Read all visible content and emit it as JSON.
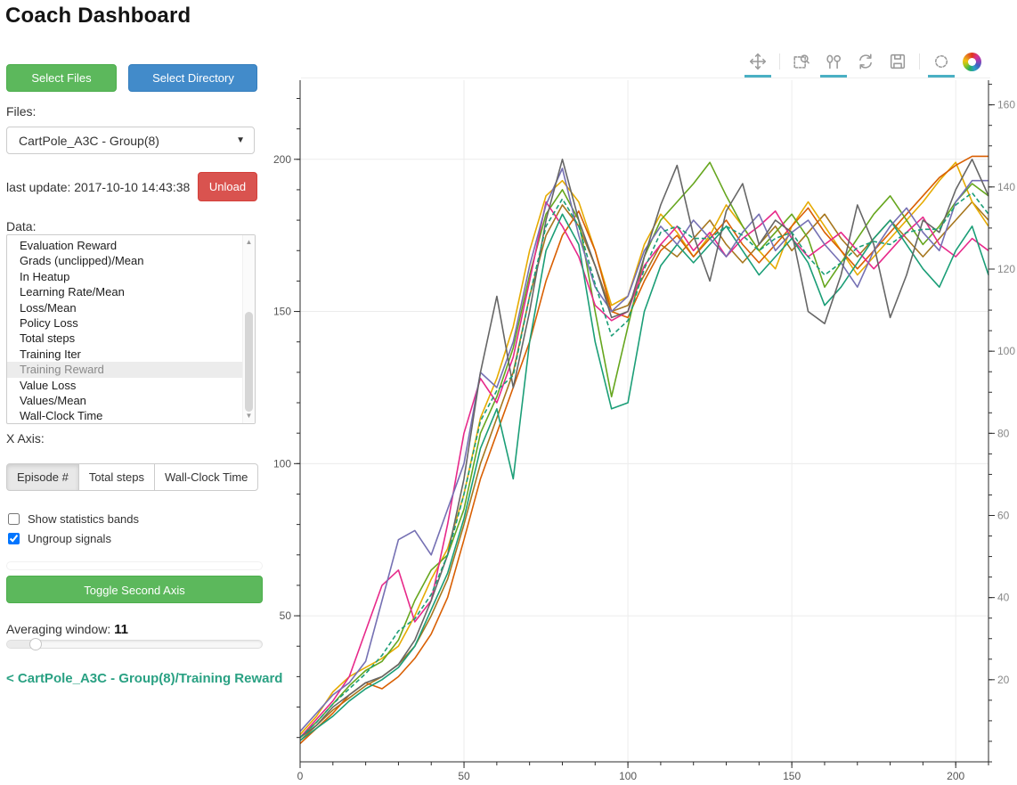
{
  "header": {
    "title": "Coach Dashboard"
  },
  "sidebar": {
    "select_files_label": "Select Files",
    "select_directory_label": "Select Directory",
    "files_label": "Files:",
    "files_selected": "CartPole_A3C - Group(8)",
    "caret_glyph": "▼",
    "last_update": "last update: 2017-10-10 14:43:38",
    "unload_label": "Unload",
    "data_label": "Data:",
    "data_items": [
      "Evaluation Reward",
      "Grads (unclipped)/Mean",
      "In Heatup",
      "Learning Rate/Mean",
      "Loss/Mean",
      "Policy Loss",
      "Total steps",
      "Training Iter",
      "Training Reward",
      "Value Loss",
      "Values/Mean",
      "Wall-Clock Time"
    ],
    "data_selected": "Training Reward",
    "scroll_up_glyph": "▲",
    "scroll_down_glyph": "▼",
    "x_axis_label": "X Axis:",
    "x_axis_options": [
      "Episode #",
      "Total steps",
      "Wall-Clock Time"
    ],
    "x_axis_selected": "Episode #",
    "checkbox_bands": {
      "label": "Show statistics bands",
      "checked": false
    },
    "checkbox_ungroup": {
      "label": "Ungroup signals",
      "checked": true
    },
    "toggle_second_axis_label": "Toggle Second Axis",
    "averaging_window_label": "Averaging window:",
    "averaging_window_value": "11",
    "breadcrumb_link": "< CartPole_A3C - Group(8)/Training Reward"
  },
  "toolbar": {
    "tools": [
      {
        "name": "pan",
        "active": true
      },
      {
        "name": "box-zoom",
        "active": false
      },
      {
        "name": "hover",
        "active": true
      },
      {
        "name": "reset",
        "active": false
      },
      {
        "name": "save",
        "active": false
      },
      {
        "name": "crosshair",
        "active": true
      }
    ],
    "underline_color": "#4ab0c4"
  },
  "colors": {
    "green_button": "#5cb85c",
    "blue_button": "#428bca",
    "red_button": "#d9534f",
    "link_teal": "#2aa183",
    "grid": "#ececec",
    "axis": "#2b2b2b"
  },
  "chart_data": {
    "type": "line",
    "title": "",
    "xlabel": "",
    "ylabel": "",
    "legend": "none",
    "grid": true,
    "axes": {
      "x": {
        "min": 0,
        "max": 210,
        "major": [
          0,
          50,
          100,
          150,
          200
        ],
        "minor_step": 10
      },
      "y_left": {
        "min": 2,
        "max": 226,
        "major": [
          50,
          100,
          150,
          200
        ],
        "minor_step": 10
      },
      "y_right": {
        "min": 0,
        "max": 166,
        "major": [
          20,
          40,
          60,
          80,
          100,
          120,
          140,
          160
        ],
        "minor_step": 5
      }
    },
    "x": [
      0,
      5,
      10,
      15,
      20,
      25,
      30,
      35,
      40,
      45,
      50,
      55,
      60,
      65,
      70,
      75,
      80,
      85,
      90,
      95,
      100,
      105,
      110,
      115,
      120,
      125,
      130,
      135,
      140,
      145,
      150,
      155,
      160,
      165,
      170,
      175,
      180,
      185,
      190,
      195,
      200,
      205,
      210
    ],
    "series": [
      {
        "name": "worker-brown",
        "color": "#a6761d",
        "dashed": false,
        "values": [
          9,
          14,
          19,
          23,
          27,
          30,
          34,
          40,
          50,
          62,
          80,
          100,
          115,
          130,
          155,
          175,
          185,
          178,
          165,
          150,
          152,
          162,
          172,
          168,
          174,
          180,
          172,
          166,
          172,
          178,
          170,
          176,
          182,
          174,
          168,
          174,
          180,
          174,
          168,
          174,
          180,
          186,
          180
        ]
      },
      {
        "name": "worker-gold",
        "color": "#e6ab02",
        "dashed": false,
        "values": [
          11,
          17,
          25,
          30,
          33,
          36,
          40,
          50,
          62,
          72,
          90,
          115,
          128,
          145,
          170,
          188,
          193,
          186,
          170,
          152,
          155,
          172,
          182,
          176,
          168,
          175,
          185,
          178,
          170,
          164,
          178,
          186,
          178,
          170,
          162,
          168,
          174,
          180,
          186,
          193,
          199,
          186,
          178
        ]
      },
      {
        "name": "worker-orange",
        "color": "#d95f02",
        "dashed": false,
        "values": [
          8,
          13,
          18,
          24,
          28,
          26,
          30,
          36,
          44,
          56,
          75,
          95,
          110,
          125,
          140,
          160,
          175,
          183,
          170,
          150,
          148,
          160,
          170,
          175,
          168,
          174,
          180,
          172,
          166,
          172,
          178,
          184,
          176,
          170,
          164,
          170,
          176,
          182,
          188,
          194,
          198,
          201,
          201
        ]
      },
      {
        "name": "worker-green",
        "color": "#66a61e",
        "dashed": false,
        "values": [
          10,
          15,
          21,
          27,
          32,
          35,
          42,
          55,
          65,
          70,
          85,
          110,
          122,
          138,
          162,
          182,
          190,
          180,
          150,
          122,
          145,
          168,
          180,
          186,
          192,
          199,
          188,
          178,
          170,
          176,
          182,
          174,
          158,
          166,
          174,
          182,
          188,
          180,
          172,
          178,
          186,
          192,
          188
        ]
      },
      {
        "name": "worker-pink",
        "color": "#e7298a",
        "dashed": false,
        "values": [
          10,
          16,
          22,
          30,
          45,
          60,
          65,
          48,
          55,
          80,
          110,
          128,
          120,
          135,
          160,
          186,
          178,
          168,
          152,
          147,
          150,
          165,
          172,
          178,
          170,
          176,
          168,
          174,
          178,
          183,
          174,
          168,
          172,
          176,
          170,
          164,
          170,
          176,
          181,
          172,
          168,
          174,
          170
        ]
      },
      {
        "name": "worker-teal",
        "color": "#1b9e77",
        "dashed": false,
        "values": [
          9,
          13,
          17,
          22,
          26,
          29,
          33,
          40,
          52,
          64,
          82,
          105,
          118,
          95,
          140,
          170,
          182,
          172,
          140,
          118,
          120,
          150,
          165,
          172,
          166,
          172,
          178,
          170,
          162,
          168,
          174,
          166,
          152,
          158,
          166,
          174,
          180,
          172,
          164,
          158,
          170,
          178,
          162
        ]
      },
      {
        "name": "worker-purple",
        "color": "#7570b3",
        "dashed": false,
        "values": [
          12,
          18,
          24,
          28,
          35,
          55,
          75,
          78,
          70,
          85,
          100,
          130,
          125,
          140,
          165,
          185,
          197,
          175,
          158,
          150,
          155,
          170,
          178,
          172,
          180,
          174,
          168,
          176,
          182,
          170,
          176,
          180,
          172,
          166,
          158,
          170,
          178,
          184,
          176,
          170,
          186,
          193,
          193
        ]
      },
      {
        "name": "worker-gray",
        "color": "#666666",
        "dashed": false,
        "values": [
          10,
          14,
          20,
          24,
          28,
          30,
          34,
          42,
          55,
          70,
          95,
          130,
          155,
          125,
          150,
          180,
          200,
          180,
          165,
          148,
          150,
          168,
          185,
          198,
          175,
          160,
          183,
          192,
          172,
          180,
          176,
          150,
          146,
          162,
          185,
          172,
          148,
          162,
          180,
          176,
          190,
          200,
          188
        ]
      },
      {
        "name": "mean-dashed",
        "color": "#1b9e77",
        "dashed": true,
        "values": [
          10,
          15,
          21,
          26,
          31,
          37,
          45,
          49,
          57,
          70,
          90,
          114,
          124,
          129,
          155,
          178,
          187,
          178,
          159,
          142,
          147,
          164,
          176,
          178,
          174,
          174,
          178,
          175,
          170,
          174,
          176,
          168,
          162,
          166,
          171,
          173,
          172,
          176,
          177,
          177,
          185,
          189,
          182
        ]
      }
    ]
  }
}
